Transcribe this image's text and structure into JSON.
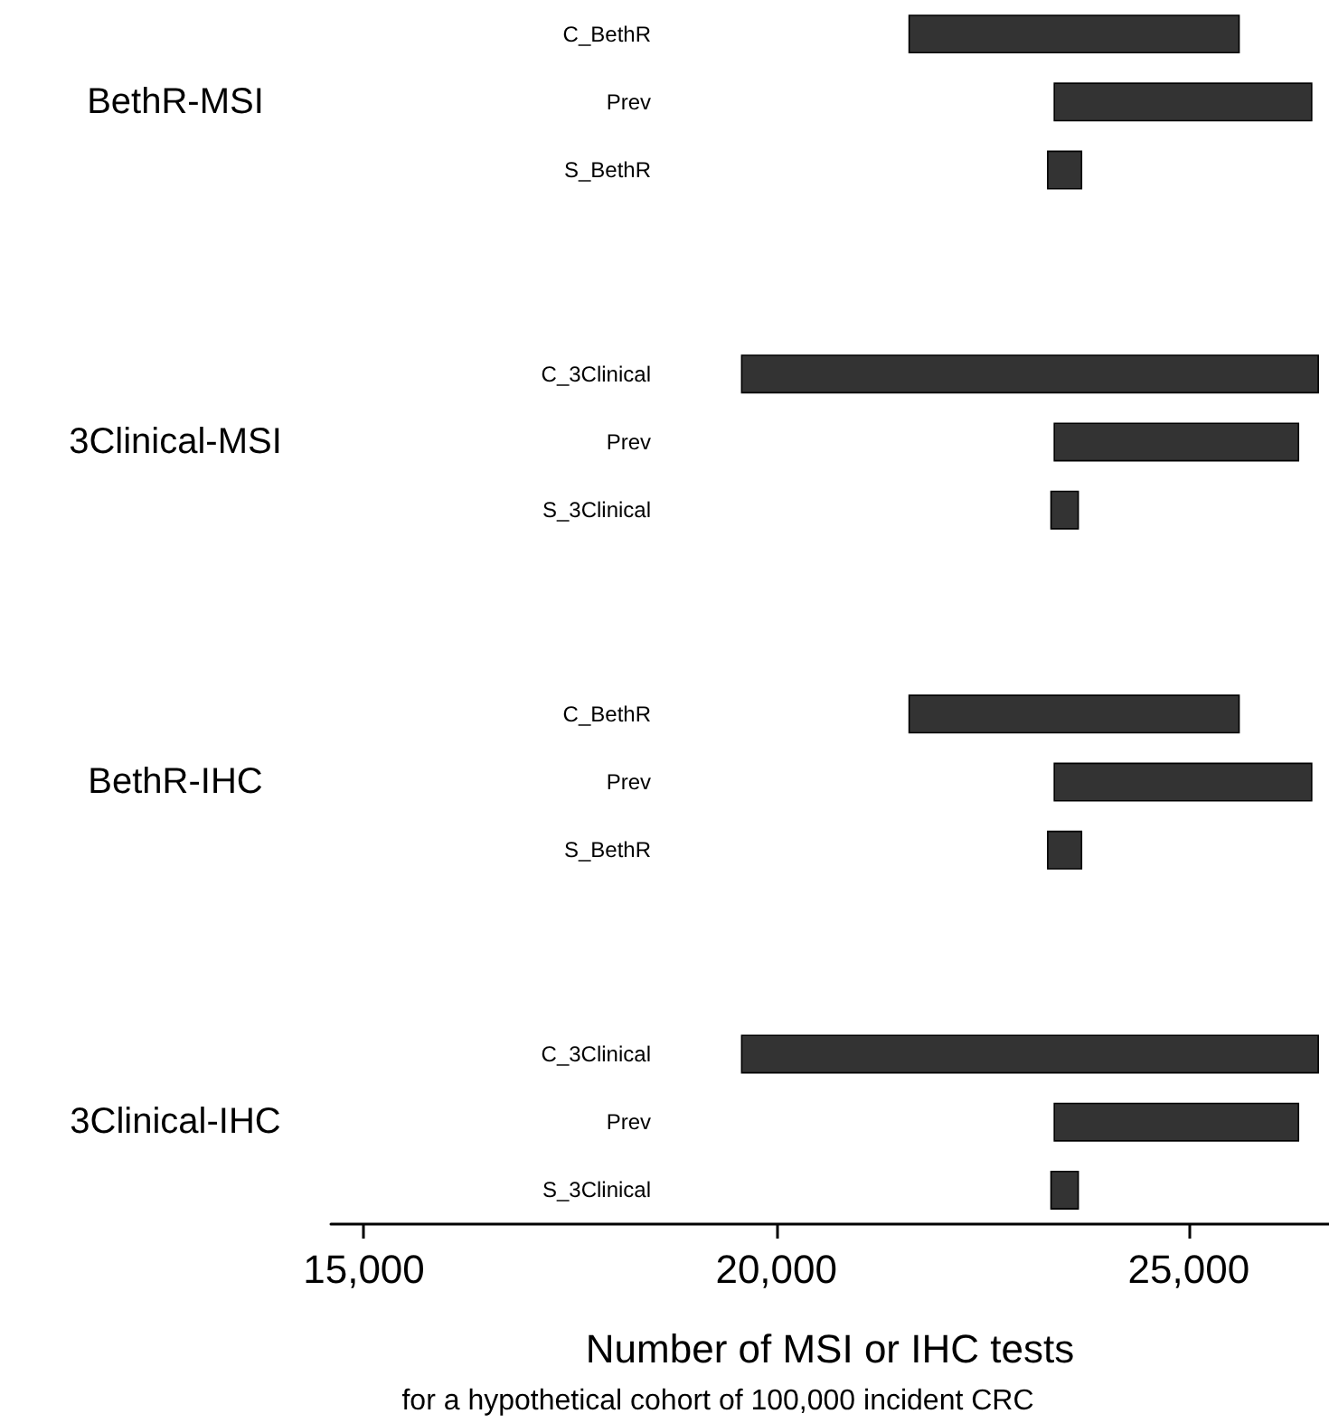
{
  "chart_data": {
    "type": "bar",
    "orientation": "horizontal",
    "xlabel": "Number of MSI or IHC tests",
    "subtitle": "for a hypothetical cohort of 100,000 incident CRC",
    "annotations": [
      "BethR-MSI",
      "3Clinical-MSI",
      "BethR-IHC",
      "3Clinical-IHC"
    ],
    "categories": [
      "C_BethR",
      "Prev",
      "S_BethR",
      null,
      null,
      "C_3Clinical",
      "Prev",
      "S_3Clinical",
      null,
      null,
      "C_BethR",
      "Prev",
      "S_BethR",
      null,
      null,
      "C_3Clinical",
      "Prev",
      "S_3Clinical"
    ],
    "base": [
      21610,
      23370,
      23290,
      null,
      null,
      19580,
      23370,
      23330,
      null,
      null,
      21610,
      23370,
      23290,
      null,
      null,
      19580,
      23370,
      23330
    ],
    "values": [
      4000,
      3120,
      410,
      null,
      null,
      6990,
      2960,
      330,
      null,
      null,
      4000,
      3120,
      410,
      null,
      null,
      6990,
      2960,
      330
    ],
    "color": "#333333",
    "xlim": [
      14600,
      26700
    ],
    "xticks": [
      {
        "value": 15000,
        "label": "15,000"
      },
      {
        "value": 20000,
        "label": "20,000"
      },
      {
        "value": 25000,
        "label": "25,000"
      }
    ],
    "grid": false
  }
}
